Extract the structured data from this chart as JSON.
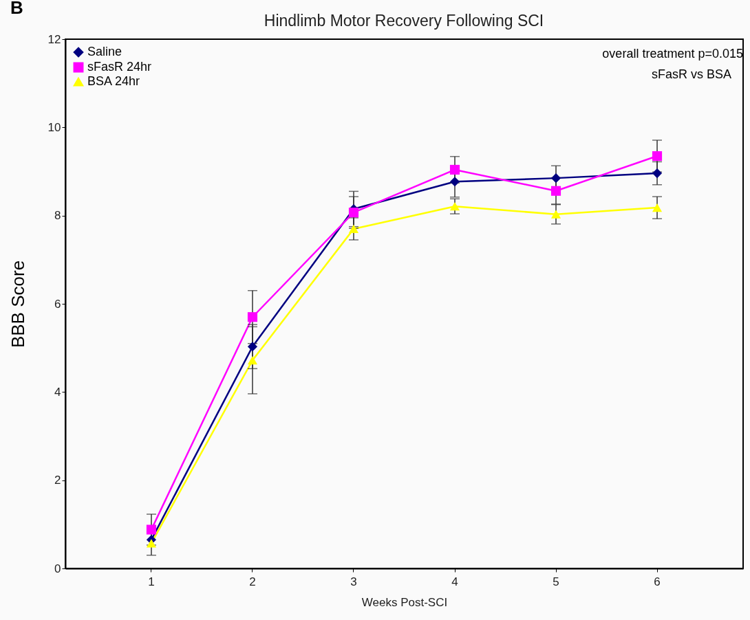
{
  "chart_data": {
    "type": "line",
    "title": "Hindlimb Motor Recovery Following SCI",
    "xlabel": "Weeks Post-SCI",
    "ylabel": "BBB Score",
    "categories": [
      "1",
      "2",
      "3",
      "4",
      "5",
      "6"
    ],
    "series": [
      {
        "name": "Saline",
        "color": "#000080",
        "marker": "diamond",
        "values": [
          0.65,
          5.03,
          8.15,
          8.77,
          8.85,
          8.96
        ],
        "errors": [
          null,
          0.5,
          0.4,
          0.35,
          0.28,
          0.26
        ]
      },
      {
        "name": "sFasR 24hr",
        "color": "#ff00ff",
        "marker": "square",
        "values": [
          0.88,
          5.7,
          8.07,
          9.04,
          8.56,
          9.35
        ],
        "errors": [
          0.35,
          0.6,
          0.36,
          0.3,
          0.3,
          0.36
        ]
      },
      {
        "name": "BSA 24hr",
        "color": "#ffff00",
        "marker": "triangle",
        "values": [
          0.57,
          4.72,
          7.7,
          8.21,
          8.03,
          8.18
        ],
        "errors": [
          0.27,
          0.76,
          0.25,
          0.17,
          0.22,
          0.25
        ]
      }
    ],
    "ylim": [
      0,
      12
    ],
    "yticks": [
      0,
      2,
      4,
      6,
      8,
      10,
      12
    ],
    "grid": false,
    "legend": "top left",
    "annotations": [
      "B",
      "overall treatment p=0.015",
      "sFasR vs BSA"
    ]
  }
}
